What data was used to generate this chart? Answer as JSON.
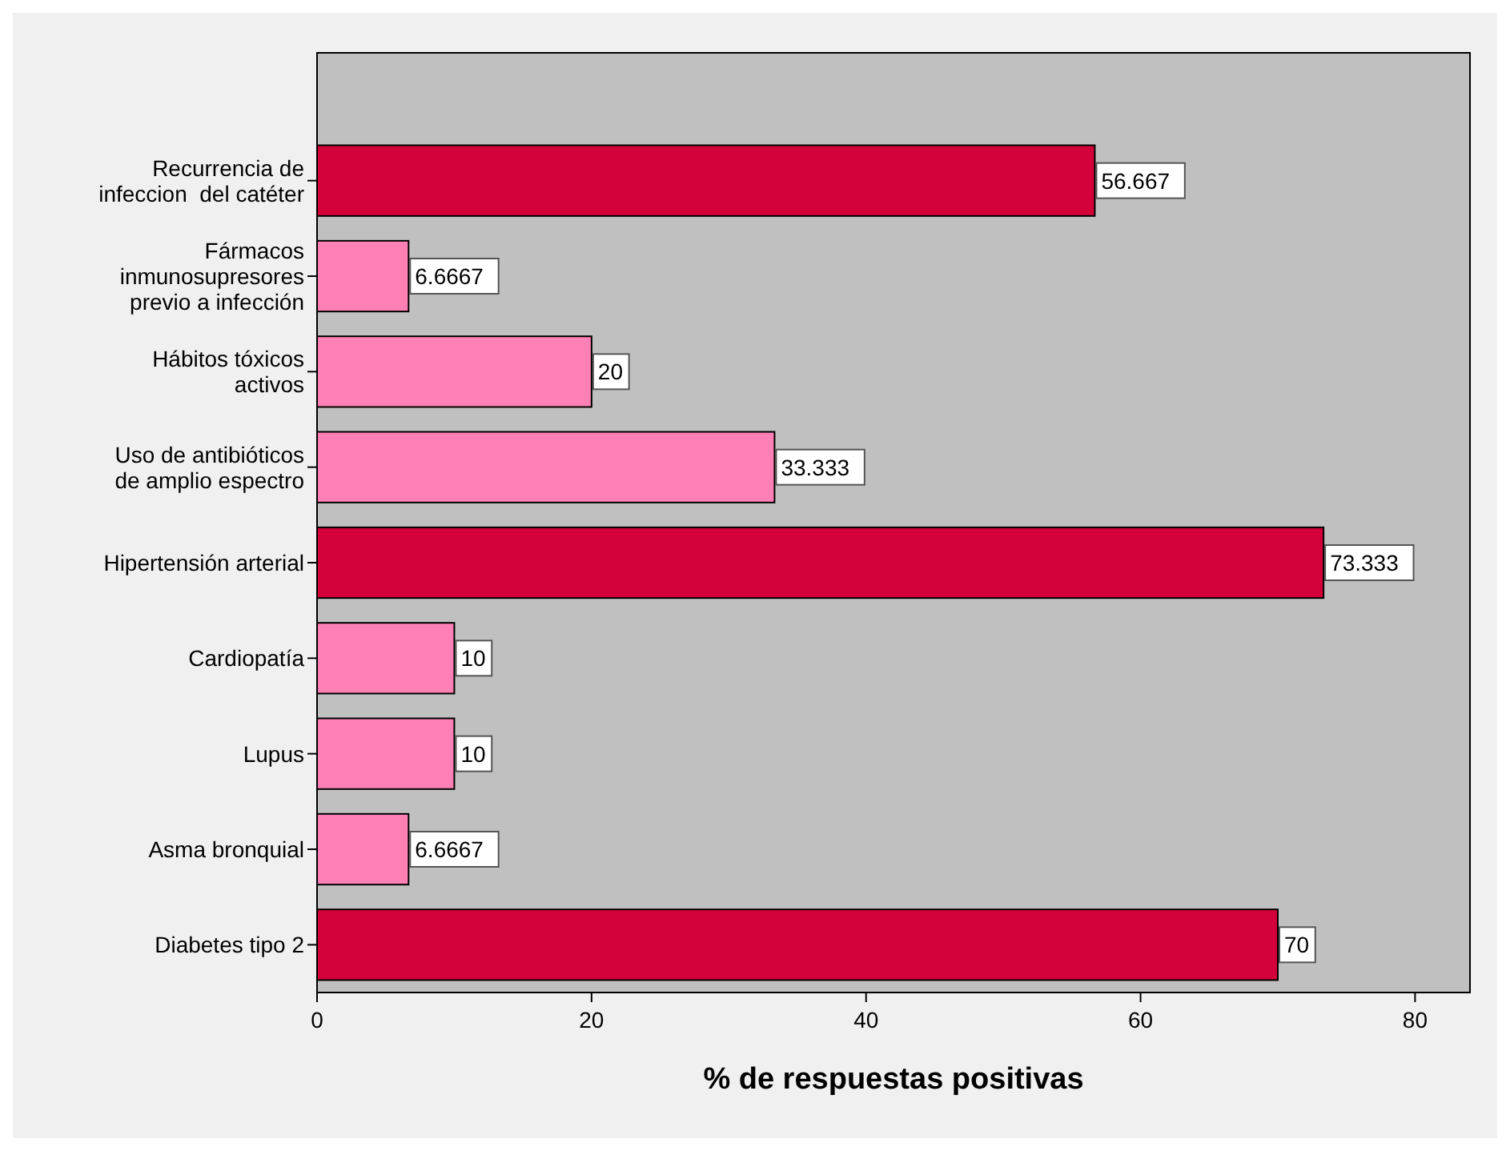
{
  "chart_data": {
    "type": "bar",
    "orientation": "horizontal",
    "xlabel": "% de respuestas positivas",
    "categories": [
      "Recurrencia de infeccion  del catéter",
      "Fármacos inmunosupresores previo a infección",
      "Hábitos tóxicos activos",
      "Uso de antibióticos de amplio espectro",
      "Hipertensión arterial",
      "Cardiopatía",
      "Lupus",
      "Asma bronquial",
      "Diabetes tipo 2"
    ],
    "values": [
      56.667,
      6.6667,
      20,
      33.333,
      73.333,
      10,
      10,
      6.6667,
      70
    ],
    "colors": [
      "#d3003a",
      "#ff80b4",
      "#ff80b4",
      "#ff80b4",
      "#d3003a",
      "#ff80b4",
      "#ff80b4",
      "#ff80b4",
      "#d3003a"
    ],
    "xlim": [
      0,
      84
    ],
    "xticks": [
      0,
      20,
      40,
      60,
      80
    ],
    "grid": false,
    "data_labels": true
  }
}
